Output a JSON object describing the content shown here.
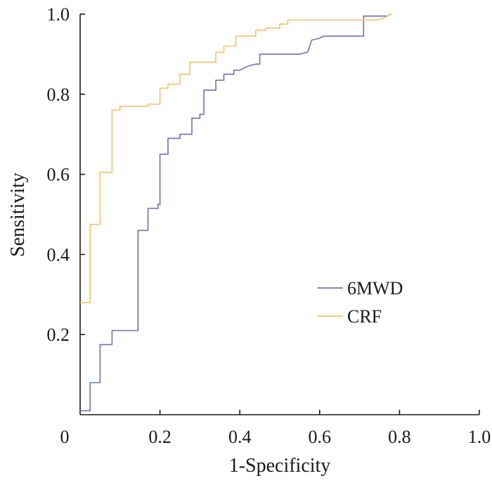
{
  "chart_data": {
    "type": "line",
    "title": "",
    "xlabel": "1-Specificity",
    "ylabel": "Sensitivity",
    "xlim": [
      0,
      1.0
    ],
    "ylim": [
      0,
      1.0
    ],
    "x_ticks": [
      0,
      0.2,
      0.4,
      0.6,
      0.8,
      1.0
    ],
    "x_tick_labels": [
      "0",
      "0.2",
      "0.4",
      "0.6",
      "0.8",
      "1.0"
    ],
    "y_ticks": [
      0.2,
      0.4,
      0.6,
      0.8,
      1.0
    ],
    "y_tick_labels": [
      "0.2",
      "0.4",
      "0.6",
      "0.8",
      "1.0"
    ],
    "grid": false,
    "legend": "center-right",
    "series": [
      {
        "name": "6MWD",
        "color": "#6d72b8",
        "step": true,
        "points": [
          [
            0,
            0.01
          ],
          [
            0.025,
            0.01
          ],
          [
            0.025,
            0.08
          ],
          [
            0.05,
            0.08
          ],
          [
            0.05,
            0.175
          ],
          [
            0.08,
            0.175
          ],
          [
            0.08,
            0.21
          ],
          [
            0.145,
            0.21
          ],
          [
            0.145,
            0.46
          ],
          [
            0.17,
            0.46
          ],
          [
            0.17,
            0.515
          ],
          [
            0.195,
            0.515
          ],
          [
            0.195,
            0.525
          ],
          [
            0.2,
            0.525
          ],
          [
            0.2,
            0.65
          ],
          [
            0.22,
            0.65
          ],
          [
            0.22,
            0.69
          ],
          [
            0.25,
            0.69
          ],
          [
            0.25,
            0.7
          ],
          [
            0.28,
            0.7
          ],
          [
            0.28,
            0.74
          ],
          [
            0.3,
            0.74
          ],
          [
            0.3,
            0.75
          ],
          [
            0.31,
            0.75
          ],
          [
            0.31,
            0.81
          ],
          [
            0.34,
            0.81
          ],
          [
            0.34,
            0.835
          ],
          [
            0.36,
            0.835
          ],
          [
            0.36,
            0.85
          ],
          [
            0.385,
            0.85
          ],
          [
            0.385,
            0.86
          ],
          [
            0.4,
            0.86
          ],
          [
            0.42,
            0.87
          ],
          [
            0.44,
            0.875
          ],
          [
            0.45,
            0.875
          ],
          [
            0.45,
            0.9
          ],
          [
            0.55,
            0.9
          ],
          [
            0.57,
            0.905
          ],
          [
            0.58,
            0.935
          ],
          [
            0.6,
            0.94
          ],
          [
            0.61,
            0.945
          ],
          [
            0.71,
            0.945
          ],
          [
            0.71,
            0.995
          ],
          [
            0.77,
            0.995
          ],
          [
            0.78,
            1.0
          ]
        ]
      },
      {
        "name": "CRF",
        "color": "#f5c06a",
        "step": true,
        "points": [
          [
            0,
            0.28
          ],
          [
            0.025,
            0.28
          ],
          [
            0.025,
            0.475
          ],
          [
            0.05,
            0.475
          ],
          [
            0.05,
            0.605
          ],
          [
            0.08,
            0.605
          ],
          [
            0.08,
            0.76
          ],
          [
            0.1,
            0.76
          ],
          [
            0.1,
            0.77
          ],
          [
            0.17,
            0.77
          ],
          [
            0.17,
            0.775
          ],
          [
            0.2,
            0.775
          ],
          [
            0.2,
            0.815
          ],
          [
            0.22,
            0.815
          ],
          [
            0.22,
            0.825
          ],
          [
            0.25,
            0.825
          ],
          [
            0.25,
            0.85
          ],
          [
            0.275,
            0.85
          ],
          [
            0.275,
            0.88
          ],
          [
            0.34,
            0.88
          ],
          [
            0.34,
            0.905
          ],
          [
            0.36,
            0.905
          ],
          [
            0.36,
            0.92
          ],
          [
            0.39,
            0.92
          ],
          [
            0.39,
            0.945
          ],
          [
            0.44,
            0.945
          ],
          [
            0.44,
            0.96
          ],
          [
            0.465,
            0.96
          ],
          [
            0.465,
            0.965
          ],
          [
            0.5,
            0.965
          ],
          [
            0.5,
            0.975
          ],
          [
            0.52,
            0.975
          ],
          [
            0.52,
            0.985
          ],
          [
            0.74,
            0.985
          ],
          [
            0.76,
            0.99
          ],
          [
            0.77,
            0.995
          ],
          [
            0.78,
            1.0
          ]
        ]
      }
    ]
  }
}
